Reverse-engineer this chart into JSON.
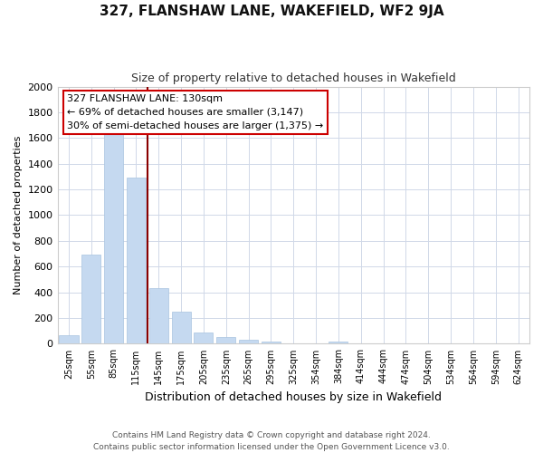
{
  "title": "327, FLANSHAW LANE, WAKEFIELD, WF2 9JA",
  "subtitle": "Size of property relative to detached houses in Wakefield",
  "xlabel": "Distribution of detached houses by size in Wakefield",
  "ylabel": "Number of detached properties",
  "bar_labels": [
    "25sqm",
    "55sqm",
    "85sqm",
    "115sqm",
    "145sqm",
    "175sqm",
    "205sqm",
    "235sqm",
    "265sqm",
    "295sqm",
    "325sqm",
    "354sqm",
    "384sqm",
    "414sqm",
    "444sqm",
    "474sqm",
    "504sqm",
    "534sqm",
    "564sqm",
    "594sqm",
    "624sqm"
  ],
  "bar_values": [
    68,
    693,
    1634,
    1290,
    432,
    253,
    88,
    52,
    28,
    20,
    0,
    0,
    15,
    0,
    0,
    0,
    0,
    0,
    0,
    0,
    0
  ],
  "bar_color": "#c5d9f0",
  "bar_edge_color": "#a8c4e0",
  "vline_x": 3.5,
  "vline_color": "#8b0000",
  "annotation_line1": "327 FLANSHAW LANE: 130sqm",
  "annotation_line2": "← 69% of detached houses are smaller (3,147)",
  "annotation_line3": "30% of semi-detached houses are larger (1,375) →",
  "annotation_box_color": "#ffffff",
  "annotation_box_edge": "#cc0000",
  "ylim": [
    0,
    2000
  ],
  "yticks": [
    0,
    200,
    400,
    600,
    800,
    1000,
    1200,
    1400,
    1600,
    1800,
    2000
  ],
  "footer_line1": "Contains HM Land Registry data © Crown copyright and database right 2024.",
  "footer_line2": "Contains public sector information licensed under the Open Government Licence v3.0.",
  "background_color": "#ffffff",
  "grid_color": "#d0d8e8"
}
